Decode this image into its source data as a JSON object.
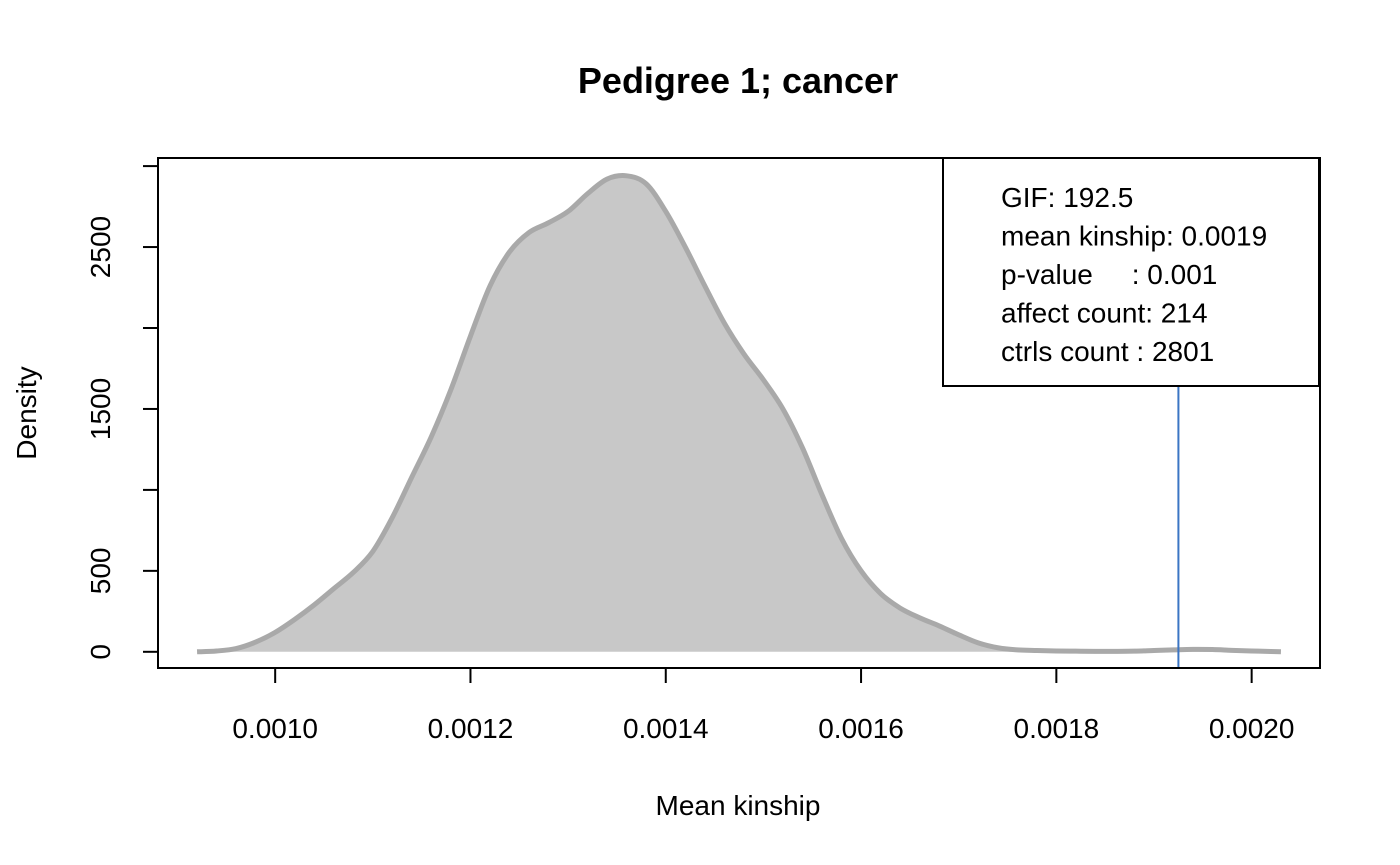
{
  "chart_data": {
    "type": "area",
    "title": "Pedigree 1; cancer",
    "xlabel": "Mean kinship",
    "ylabel": "Density",
    "xlim": [
      0.00088,
      0.00207
    ],
    "ylim": [
      -100,
      3050
    ],
    "x_ticks": [
      "0.0010",
      "0.0012",
      "0.0014",
      "0.0016",
      "0.0018",
      "0.0020"
    ],
    "y_ticks": [
      "0",
      "500",
      "1500",
      "2500"
    ],
    "y_tick_marks": [
      0,
      500,
      1000,
      1500,
      2000,
      2500,
      3000
    ],
    "density_curve": {
      "x": [
        0.00092,
        0.00094,
        0.00096,
        0.00098,
        0.001,
        0.00102,
        0.00104,
        0.00106,
        0.00108,
        0.0011,
        0.00112,
        0.00114,
        0.00116,
        0.00118,
        0.0012,
        0.00122,
        0.00124,
        0.00126,
        0.00128,
        0.0013,
        0.00132,
        0.00134,
        0.00136,
        0.00138,
        0.0014,
        0.00142,
        0.00144,
        0.00146,
        0.00148,
        0.0015,
        0.00152,
        0.00154,
        0.00156,
        0.00158,
        0.0016,
        0.00162,
        0.00164,
        0.00166,
        0.00168,
        0.0017,
        0.00172,
        0.00174,
        0.00176,
        0.00178,
        0.0018,
        0.00182,
        0.00184,
        0.00186,
        0.00188,
        0.0019,
        0.00192,
        0.00194,
        0.00196,
        0.00198,
        0.002,
        0.00202,
        0.00203
      ],
      "y": [
        0,
        5,
        20,
        60,
        120,
        200,
        290,
        390,
        490,
        620,
        830,
        1080,
        1330,
        1620,
        1950,
        2260,
        2470,
        2590,
        2650,
        2720,
        2830,
        2920,
        2940,
        2890,
        2720,
        2500,
        2260,
        2030,
        1840,
        1680,
        1500,
        1260,
        970,
        700,
        500,
        360,
        270,
        210,
        160,
        105,
        55,
        25,
        12,
        8,
        5,
        4,
        3,
        3,
        4,
        8,
        12,
        15,
        14,
        9,
        5,
        2,
        0
      ]
    },
    "fill_color": "#c8c8c8",
    "line_color": "#a9a9a9",
    "observed_line": {
      "x": 0.001925,
      "color": "#3b75c4"
    },
    "legend": {
      "position": "top-right",
      "lines": [
        "GIF: 192.5",
        "mean kinship: 0.0019",
        "p-value     : 0.001",
        "affect count: 214",
        "ctrls count : 2801"
      ]
    }
  }
}
